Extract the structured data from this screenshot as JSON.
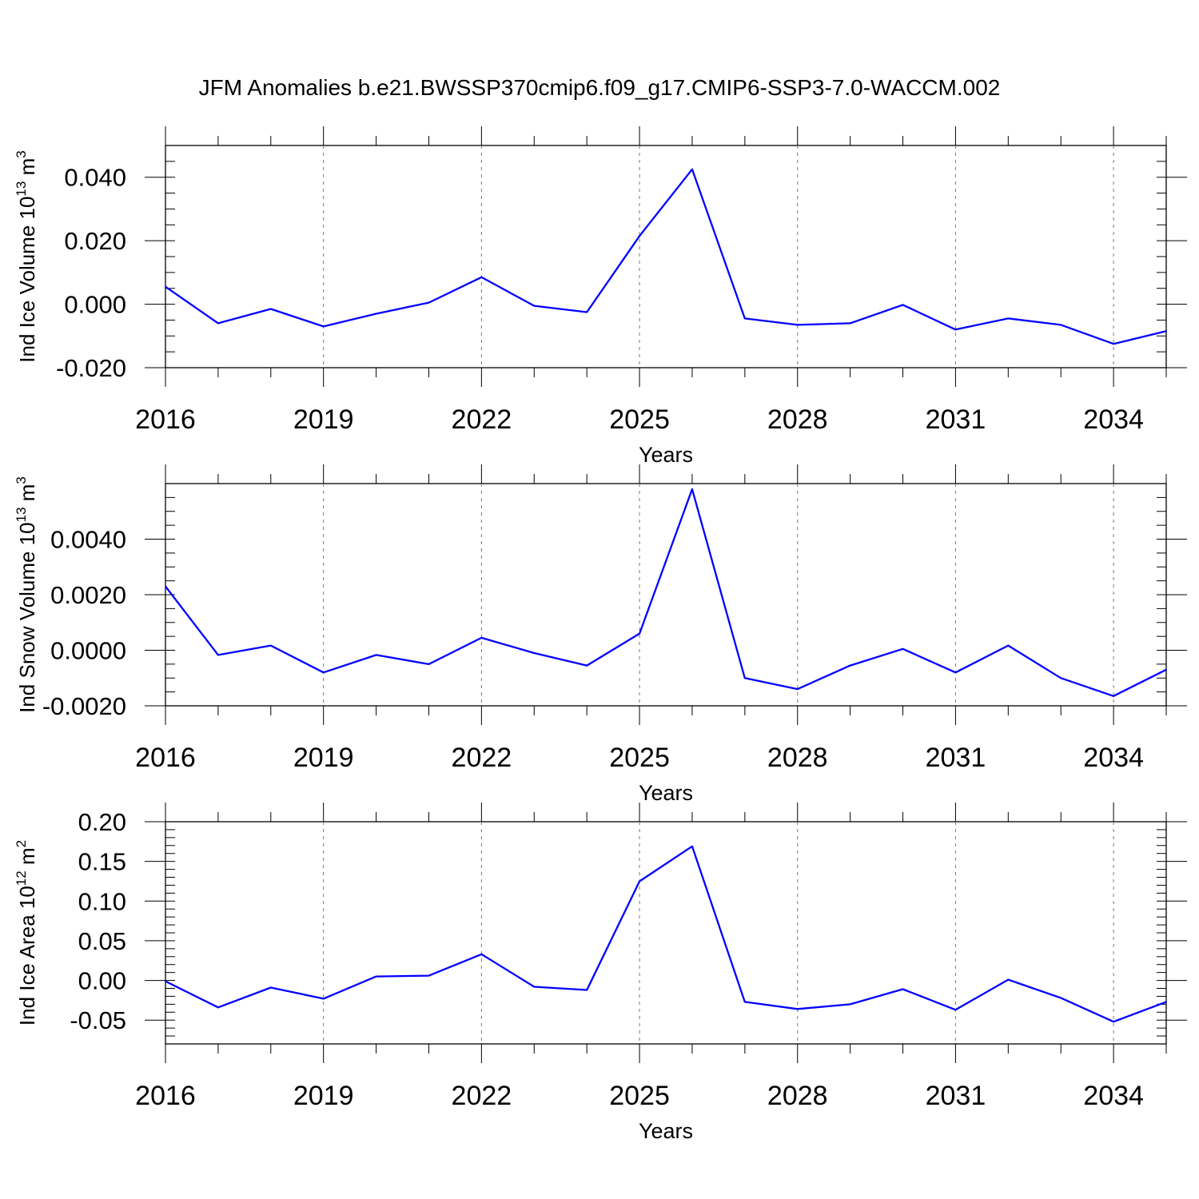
{
  "title": "JFM Anomalies b.e21.BWSSP370cmip6.f09_g17.CMIP6-SSP3-7.0-WACCM.002",
  "line_color": "#0000ff",
  "chart_data": [
    {
      "type": "line",
      "ylabel_main": "Ind Ice Volume 10",
      "ylabel_exp": "13",
      "ylabel_unit": " m",
      "ylabel_unit_exp": "3",
      "xlabel": "Years",
      "xlim": [
        2016,
        2035
      ],
      "ylim": [
        -0.02,
        0.05
      ],
      "yticks": [
        -0.02,
        0.0,
        0.02,
        0.04
      ],
      "ytick_labels": [
        "-0.020",
        "0.000",
        "0.020",
        "0.040"
      ],
      "yminor_step": 0.005,
      "xticks": [
        2016,
        2019,
        2022,
        2025,
        2028,
        2031,
        2034
      ],
      "xtick_labels": [
        "2016",
        "2019",
        "2022",
        "2025",
        "2028",
        "2031",
        "2034"
      ],
      "x": [
        2016,
        2017,
        2018,
        2019,
        2020,
        2021,
        2022,
        2023,
        2024,
        2025,
        2026,
        2027,
        2028,
        2029,
        2030,
        2031,
        2032,
        2033,
        2034,
        2035
      ],
      "values": [
        0.0055,
        -0.006,
        -0.0015,
        -0.007,
        -0.003,
        0.0005,
        0.0085,
        -0.0005,
        -0.0025,
        0.0215,
        0.0425,
        -0.0045,
        -0.0065,
        -0.006,
        -0.0002,
        -0.008,
        -0.0045,
        -0.0065,
        -0.0125,
        -0.0085
      ]
    },
    {
      "type": "line",
      "ylabel_main": "Ind Snow Volume 10",
      "ylabel_exp": "13",
      "ylabel_unit": " m",
      "ylabel_unit_exp": "3",
      "xlabel": "Years",
      "xlim": [
        2016,
        2035
      ],
      "ylim": [
        -0.002,
        0.006
      ],
      "yticks": [
        -0.002,
        0.0,
        0.002,
        0.004
      ],
      "ytick_labels": [
        "-0.0020",
        "0.0000",
        "0.0020",
        "0.0040"
      ],
      "yminor_step": 0.0005,
      "xticks": [
        2016,
        2019,
        2022,
        2025,
        2028,
        2031,
        2034
      ],
      "xtick_labels": [
        "2016",
        "2019",
        "2022",
        "2025",
        "2028",
        "2031",
        "2034"
      ],
      "x": [
        2016,
        2017,
        2018,
        2019,
        2020,
        2021,
        2022,
        2023,
        2024,
        2025,
        2026,
        2027,
        2028,
        2029,
        2030,
        2031,
        2032,
        2033,
        2034,
        2035
      ],
      "values": [
        0.0023,
        -0.00017,
        0.00017,
        -0.0008,
        -0.00017,
        -0.0005,
        0.00045,
        -0.0001,
        -0.00055,
        0.0006,
        0.0058,
        -0.001,
        -0.0014,
        -0.00055,
        5e-05,
        -0.0008,
        0.00017,
        -0.001,
        -0.00165,
        -0.0007
      ]
    },
    {
      "type": "line",
      "ylabel_main": "Ind Ice Area 10",
      "ylabel_exp": "12",
      "ylabel_unit": " m",
      "ylabel_unit_exp": "2",
      "xlabel": "Years",
      "xlim": [
        2016,
        2035
      ],
      "ylim": [
        -0.08,
        0.2
      ],
      "yticks": [
        -0.05,
        0.0,
        0.05,
        0.1,
        0.15,
        0.2
      ],
      "ytick_labels": [
        "-0.05",
        "0.00",
        "0.05",
        "0.10",
        "0.15",
        "0.20"
      ],
      "yminor_step": 0.01,
      "xticks": [
        2016,
        2019,
        2022,
        2025,
        2028,
        2031,
        2034
      ],
      "xtick_labels": [
        "2016",
        "2019",
        "2022",
        "2025",
        "2028",
        "2031",
        "2034"
      ],
      "x": [
        2016,
        2017,
        2018,
        2019,
        2020,
        2021,
        2022,
        2023,
        2024,
        2025,
        2026,
        2027,
        2028,
        2029,
        2030,
        2031,
        2032,
        2033,
        2034,
        2035
      ],
      "values": [
        -0.001,
        -0.034,
        -0.009,
        -0.023,
        0.005,
        0.006,
        0.033,
        -0.008,
        -0.012,
        0.125,
        0.169,
        -0.027,
        -0.036,
        -0.03,
        -0.011,
        -0.037,
        0.001,
        -0.022,
        -0.052,
        -0.027
      ]
    }
  ]
}
